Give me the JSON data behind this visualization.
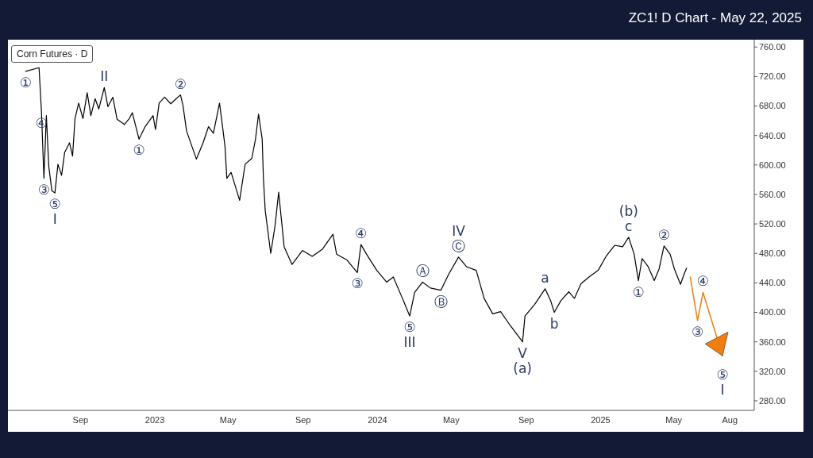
{
  "chart_data": {
    "type": "line",
    "title": "ZC1! D Chart - May 22, 2025",
    "subtitle": "Corn Futures · D",
    "x": [
      "2022-06-03",
      "2022-06-25",
      "2022-06-29",
      "2022-07-03",
      "2022-07-07",
      "2022-07-11",
      "2022-07-16",
      "2022-07-21",
      "2022-07-26",
      "2022-08-01",
      "2022-08-06",
      "2022-08-14",
      "2022-08-19",
      "2022-08-23",
      "2022-08-29",
      "2022-09-05",
      "2022-09-12",
      "2022-09-18",
      "2022-09-25",
      "2022-10-01",
      "2022-10-10",
      "2022-10-16",
      "2022-10-24",
      "2022-10-31",
      "2022-11-12",
      "2022-11-20",
      "2022-11-25",
      "2022-12-06",
      "2022-12-16",
      "2022-12-29",
      "2023-01-02",
      "2023-01-08",
      "2023-01-17",
      "2023-01-27",
      "2023-02-05",
      "2023-02-12",
      "2023-02-16",
      "2023-02-22",
      "2023-03-10",
      "2023-03-21",
      "2023-03-30",
      "2023-04-07",
      "2023-04-17",
      "2023-04-22",
      "2023-04-26",
      "2023-04-29",
      "2023-05-06",
      "2023-05-20",
      "2023-05-29",
      "2023-06-09",
      "2023-06-15",
      "2023-06-20",
      "2023-06-26",
      "2023-06-28",
      "2023-07-01",
      "2023-07-10",
      "2023-07-17",
      "2023-07-23",
      "2023-08-01",
      "2023-08-14",
      "2023-08-31",
      "2023-09-16",
      "2023-10-03",
      "2023-10-20",
      "2023-10-26",
      "2023-11-12",
      "2023-11-29",
      "2023-12-05",
      "2023-12-14",
      "2023-12-31",
      "2024-01-16",
      "2024-01-27",
      "2024-02-11",
      "2024-02-23",
      "2024-03-02",
      "2024-03-15",
      "2024-03-28",
      "2024-04-14",
      "2024-04-27",
      "2024-05-13",
      "2024-05-26",
      "2024-06-11",
      "2024-06-24",
      "2024-07-08",
      "2024-07-21",
      "2024-08-06",
      "2024-08-26",
      "2024-08-30",
      "2024-09-15",
      "2024-10-02",
      "2024-10-11",
      "2024-10-17",
      "2024-10-28",
      "2024-11-10",
      "2024-11-19",
      "2024-11-30",
      "2024-12-13",
      "2024-12-28",
      "2025-01-10",
      "2025-01-24",
      "2025-02-06",
      "2025-02-16",
      "2025-02-25",
      "2025-03-04",
      "2025-03-10",
      "2025-03-20",
      "2025-03-30",
      "2025-04-07",
      "2025-04-15",
      "2025-04-25",
      "2025-05-02",
      "2025-05-12",
      "2025-05-18",
      "2025-05-22"
    ],
    "series": [
      {
        "color": "#000000",
        "values": [
          727,
          732,
          672,
          582,
          667,
          598,
          565,
          562,
          601,
          586,
          617,
          630,
          612,
          663,
          684,
          663,
          698,
          667,
          690,
          676,
          705,
          679,
          692,
          662,
          655,
          663,
          671,
          635,
          652,
          667,
          648,
          684,
          692,
          683,
          690,
          695,
          681,
          646,
          608,
          630,
          652,
          643,
          684,
          652,
          625,
          582,
          590,
          552,
          601,
          609,
          635,
          669,
          635,
          582,
          538,
          480,
          517,
          563,
          489,
          465,
          484,
          476,
          486,
          506,
          479,
          471,
          454,
          492,
          479,
          457,
          441,
          448,
          419,
          395,
          427,
          441,
          433,
          430,
          452,
          475,
          462,
          457,
          419,
          398,
          401,
          382,
          360,
          395,
          411,
          432,
          416,
          400,
          416,
          428,
          419,
          439,
          448,
          457,
          476,
          491,
          489,
          502,
          479,
          443,
          473,
          462,
          443,
          459,
          490,
          479,
          459,
          438,
          452,
          460
        ]
      },
      {
        "type": "line",
        "color": "#f07d10",
        "x": [
          "2025-05-28",
          "2025-06-09",
          "2025-06-18",
          "2025-07-20"
        ],
        "values": [
          448,
          389,
          427,
          341
        ]
      }
    ],
    "xlim": [
      "2022-05-05",
      "2025-09-10"
    ],
    "xticks": [
      {
        "value": "2022-09-01",
        "label": "Sep"
      },
      {
        "value": "2023-01-01",
        "label": "2023"
      },
      {
        "value": "2023-05-01",
        "label": "May"
      },
      {
        "value": "2023-09-01",
        "label": "Sep"
      },
      {
        "value": "2024-01-01",
        "label": "2024"
      },
      {
        "value": "2024-05-01",
        "label": "May"
      },
      {
        "value": "2024-09-01",
        "label": "Sep"
      },
      {
        "value": "2025-01-01",
        "label": "2025"
      },
      {
        "value": "2025-05-01",
        "label": "May"
      },
      {
        "value": "2025-08-01",
        "label": "Aug"
      }
    ],
    "ylim": [
      267,
      770
    ],
    "yticks": [
      {
        "value": 280,
        "label": "280.00"
      },
      {
        "value": 320,
        "label": "320.00"
      },
      {
        "value": 360,
        "label": "360.00"
      },
      {
        "value": 400,
        "label": "400.00"
      },
      {
        "value": 440,
        "label": "440.00"
      },
      {
        "value": 480,
        "label": "480.00"
      },
      {
        "value": 520,
        "label": "520.00"
      },
      {
        "value": 560,
        "label": "560.00"
      },
      {
        "value": 600,
        "label": "600.00"
      },
      {
        "value": 640,
        "label": "640.00"
      },
      {
        "value": 680,
        "label": "680.00"
      },
      {
        "value": 720,
        "label": "720.00"
      },
      {
        "value": 760,
        "label": "760.00"
      }
    ],
    "grid": false,
    "marker": "none",
    "line_style": "solid",
    "annotations": [
      {
        "text": "①",
        "x": "2022-06-03",
        "y": 727
      },
      {
        "text": "④",
        "x": "2022-06-29",
        "y": 672
      },
      {
        "text": "③",
        "x": "2022-07-03",
        "y": 582
      },
      {
        "text": "⑤",
        "x": "2022-07-21",
        "y": 562
      },
      {
        "text": "I",
        "x": "2022-07-21",
        "y": 562
      },
      {
        "text": "II",
        "x": "2022-10-10",
        "y": 705
      },
      {
        "text": "①",
        "x": "2022-12-06",
        "y": 635
      },
      {
        "text": "②",
        "x": "2023-02-12",
        "y": 695
      },
      {
        "text": "④",
        "x": "2023-12-05",
        "y": 492
      },
      {
        "text": "③",
        "x": "2023-11-29",
        "y": 454
      },
      {
        "text": "Ⓐ",
        "x": "2024-03-15",
        "y": 441
      },
      {
        "text": "Ⓑ",
        "x": "2024-04-14",
        "y": 430
      },
      {
        "text": "⑤",
        "x": "2024-02-23",
        "y": 395
      },
      {
        "text": "III",
        "x": "2024-02-23",
        "y": 395
      },
      {
        "text": "Ⓒ",
        "x": "2024-05-13",
        "y": 475
      },
      {
        "text": "IV",
        "x": "2024-05-13",
        "y": 475
      },
      {
        "text": "V",
        "x": "2024-08-26",
        "y": 360
      },
      {
        "text": "(a)",
        "x": "2024-08-26",
        "y": 360
      },
      {
        "text": "a",
        "x": "2024-10-02",
        "y": 432
      },
      {
        "text": "b",
        "x": "2024-10-17",
        "y": 400
      },
      {
        "text": "c",
        "x": "2025-02-16",
        "y": 502
      },
      {
        "text": "(b)",
        "x": "2025-02-16",
        "y": 502
      },
      {
        "text": "①",
        "x": "2025-03-04",
        "y": 443
      },
      {
        "text": "②",
        "x": "2025-04-15",
        "y": 490
      },
      {
        "text": "④",
        "x": "2025-06-18",
        "y": 427
      },
      {
        "text": "③",
        "x": "2025-06-09",
        "y": 389
      },
      {
        "text": "⑤",
        "x": "2025-07-20",
        "y": 341
      },
      {
        "text": "I",
        "x": "2025-07-20",
        "y": 341
      }
    ]
  }
}
